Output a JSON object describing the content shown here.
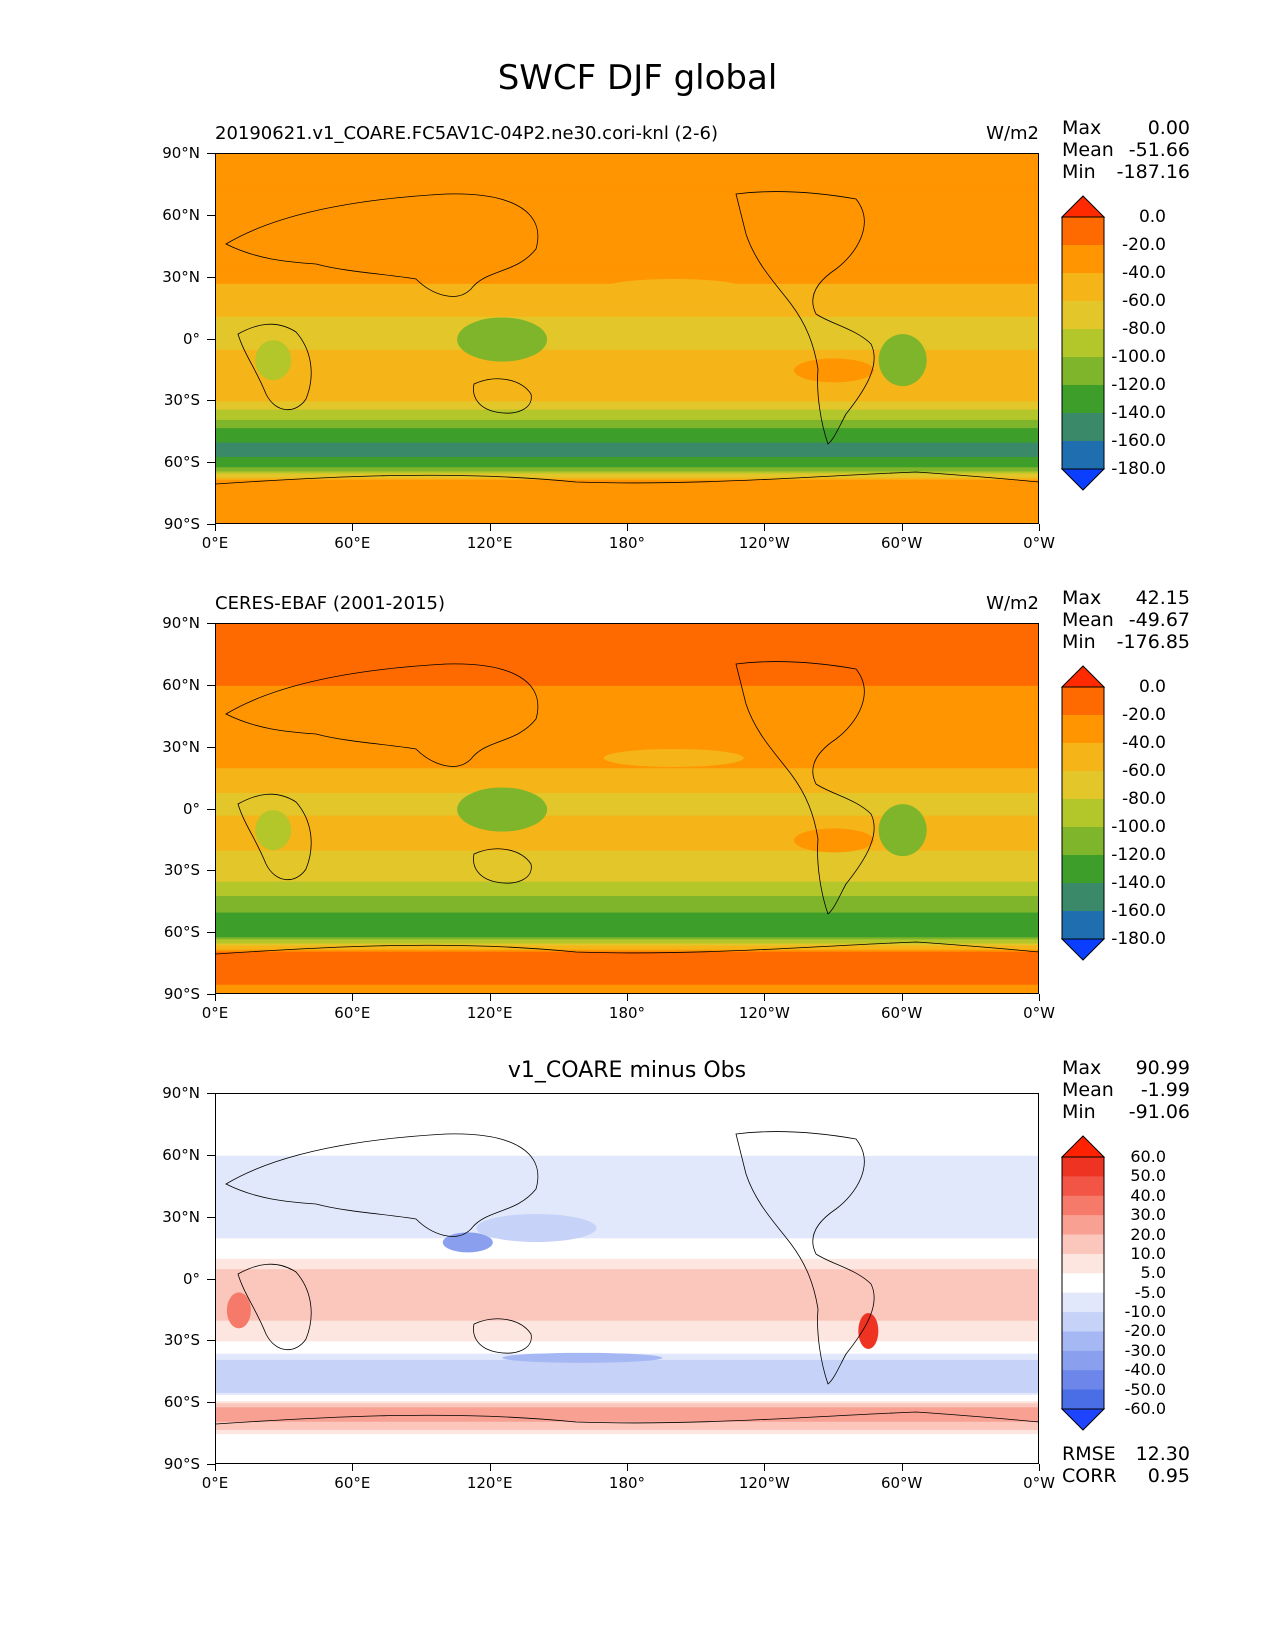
{
  "figure_title": "SWCF DJF global",
  "panels": [
    {
      "title_left": "20190621.v1_COARE.FC5AV1C-04P2.ne30.cori-knl (2-6)",
      "title_center": "",
      "units": "W/m2",
      "stats": {
        "max_label": "Max",
        "max": "0.00",
        "mean_label": "Mean",
        "mean": "-51.66",
        "min_label": "Min",
        "min": "-187.16"
      },
      "colorbar_labels": [
        "0.0",
        "-20.0",
        "-40.0",
        "-60.0",
        "-80.0",
        "-100.0",
        "-120.0",
        "-140.0",
        "-160.0",
        "-180.0"
      ]
    },
    {
      "title_left": "CERES-EBAF (2001-2015)",
      "title_center": "",
      "units": "W/m2",
      "stats": {
        "max_label": "Max",
        "max": "42.15",
        "mean_label": "Mean",
        "mean": "-49.67",
        "min_label": "Min",
        "min": "-176.85"
      },
      "colorbar_labels": [
        "0.0",
        "-20.0",
        "-40.0",
        "-60.0",
        "-80.0",
        "-100.0",
        "-120.0",
        "-140.0",
        "-160.0",
        "-180.0"
      ]
    },
    {
      "title_left": "",
      "title_center": "v1_COARE minus Obs",
      "units": "",
      "stats": {
        "max_label": "Max",
        "max": "90.99",
        "mean_label": "Mean",
        "mean": "-1.99",
        "min_label": "Min",
        "min": "-91.06"
      },
      "colorbar_labels": [
        "60.0",
        "50.0",
        "40.0",
        "30.0",
        "20.0",
        "10.0",
        "5.0",
        "-5.0",
        "-10.0",
        "-20.0",
        "-30.0",
        "-40.0",
        "-50.0",
        "-60.0"
      ],
      "rmse_label": "RMSE",
      "rmse": "12.30",
      "corr_label": "CORR",
      "corr": "0.95"
    }
  ],
  "axes": {
    "y_ticks": [
      "90°N",
      "60°N",
      "30°N",
      "0°",
      "30°S",
      "60°S",
      "90°S"
    ],
    "x_ticks": [
      "0°E",
      "60°E",
      "120°E",
      "180°",
      "120°W",
      "60°W",
      "0°W"
    ]
  },
  "colors": {
    "abs_levels": [
      "#ff2a00",
      "#ff6a00",
      "#ff9500",
      "#f5b519",
      "#e3c62a",
      "#b3c62a",
      "#7fb52a",
      "#3e9e2a",
      "#3a8a6a",
      "#1f6fb0",
      "#0a3fff"
    ],
    "diff_levels": [
      "#ff2200",
      "#ee3322",
      "#f25545",
      "#f57a6a",
      "#f8a092",
      "#fbc6bb",
      "#fde6e0",
      "#ffffff",
      "#e2e8fb",
      "#c6d2f8",
      "#a5b8f4",
      "#8aa0ef",
      "#6c86ea",
      "#4a6ee6",
      "#1f44ff"
    ]
  },
  "chart_data": [
    {
      "type": "heatmap",
      "title": "20190621.v1_COARE.FC5AV1C-04P2.ne30.cori-knl (2-6)",
      "units": "W/m2",
      "x_ticks": [
        "0°E",
        "60°E",
        "120°E",
        "180°",
        "120°W",
        "60°W",
        "0°W"
      ],
      "y_ticks": [
        "90°N",
        "60°N",
        "30°N",
        "0°",
        "30°S",
        "60°S",
        "90°S"
      ],
      "colorbar_levels": [
        0,
        -20,
        -40,
        -60,
        -80,
        -100,
        -120,
        -140,
        -160,
        -180
      ],
      "max": 0.0,
      "mean": -51.66,
      "min": -187.16,
      "zonal_profile": [
        {
          "lat": 80,
          "value": -20
        },
        {
          "lat": 60,
          "value": -20
        },
        {
          "lat": 40,
          "value": -30
        },
        {
          "lat": 20,
          "value": -45
        },
        {
          "lat": 5,
          "value": -70
        },
        {
          "lat": -10,
          "value": -55
        },
        {
          "lat": -30,
          "value": -60
        },
        {
          "lat": -45,
          "value": -130
        },
        {
          "lat": -55,
          "value": -150
        },
        {
          "lat": -62,
          "value": -120
        },
        {
          "lat": -70,
          "value": -20
        },
        {
          "lat": -85,
          "value": -20
        }
      ]
    },
    {
      "type": "heatmap",
      "title": "CERES-EBAF (2001-2015)",
      "units": "W/m2",
      "x_ticks": [
        "0°E",
        "60°E",
        "120°E",
        "180°",
        "120°W",
        "60°W",
        "0°W"
      ],
      "y_ticks": [
        "90°N",
        "60°N",
        "30°N",
        "0°",
        "30°S",
        "60°S",
        "90°S"
      ],
      "colorbar_levels": [
        0,
        -20,
        -40,
        -60,
        -80,
        -100,
        -120,
        -140,
        -160,
        -180
      ],
      "max": 42.15,
      "mean": -49.67,
      "min": -176.85,
      "zonal_profile": [
        {
          "lat": 80,
          "value": -5
        },
        {
          "lat": 60,
          "value": -20
        },
        {
          "lat": 40,
          "value": -30
        },
        {
          "lat": 20,
          "value": -40
        },
        {
          "lat": 5,
          "value": -65
        },
        {
          "lat": -10,
          "value": -55
        },
        {
          "lat": -30,
          "value": -65
        },
        {
          "lat": -45,
          "value": -110
        },
        {
          "lat": -55,
          "value": -130
        },
        {
          "lat": -62,
          "value": -120
        },
        {
          "lat": -70,
          "value": -10
        },
        {
          "lat": -85,
          "value": -20
        }
      ]
    },
    {
      "type": "heatmap",
      "title": "v1_COARE minus Obs",
      "x_ticks": [
        "0°E",
        "60°E",
        "120°E",
        "180°",
        "120°W",
        "60°W",
        "0°W"
      ],
      "y_ticks": [
        "90°N",
        "60°N",
        "30°N",
        "0°",
        "30°S",
        "60°S",
        "90°S"
      ],
      "colorbar_levels": [
        60,
        50,
        40,
        30,
        20,
        10,
        5,
        -5,
        -10,
        -20,
        -30,
        -40,
        -50,
        -60
      ],
      "max": 90.99,
      "mean": -1.99,
      "min": -91.06,
      "rmse": 12.3,
      "corr": 0.95,
      "zonal_profile": [
        {
          "lat": 80,
          "value": 0
        },
        {
          "lat": 60,
          "value": -5
        },
        {
          "lat": 40,
          "value": -10
        },
        {
          "lat": 20,
          "value": -5
        },
        {
          "lat": 5,
          "value": 10
        },
        {
          "lat": -10,
          "value": 15
        },
        {
          "lat": -30,
          "value": 5
        },
        {
          "lat": -45,
          "value": -20
        },
        {
          "lat": -55,
          "value": -10
        },
        {
          "lat": -65,
          "value": 30
        },
        {
          "lat": -75,
          "value": 5
        },
        {
          "lat": -85,
          "value": 0
        }
      ]
    }
  ]
}
